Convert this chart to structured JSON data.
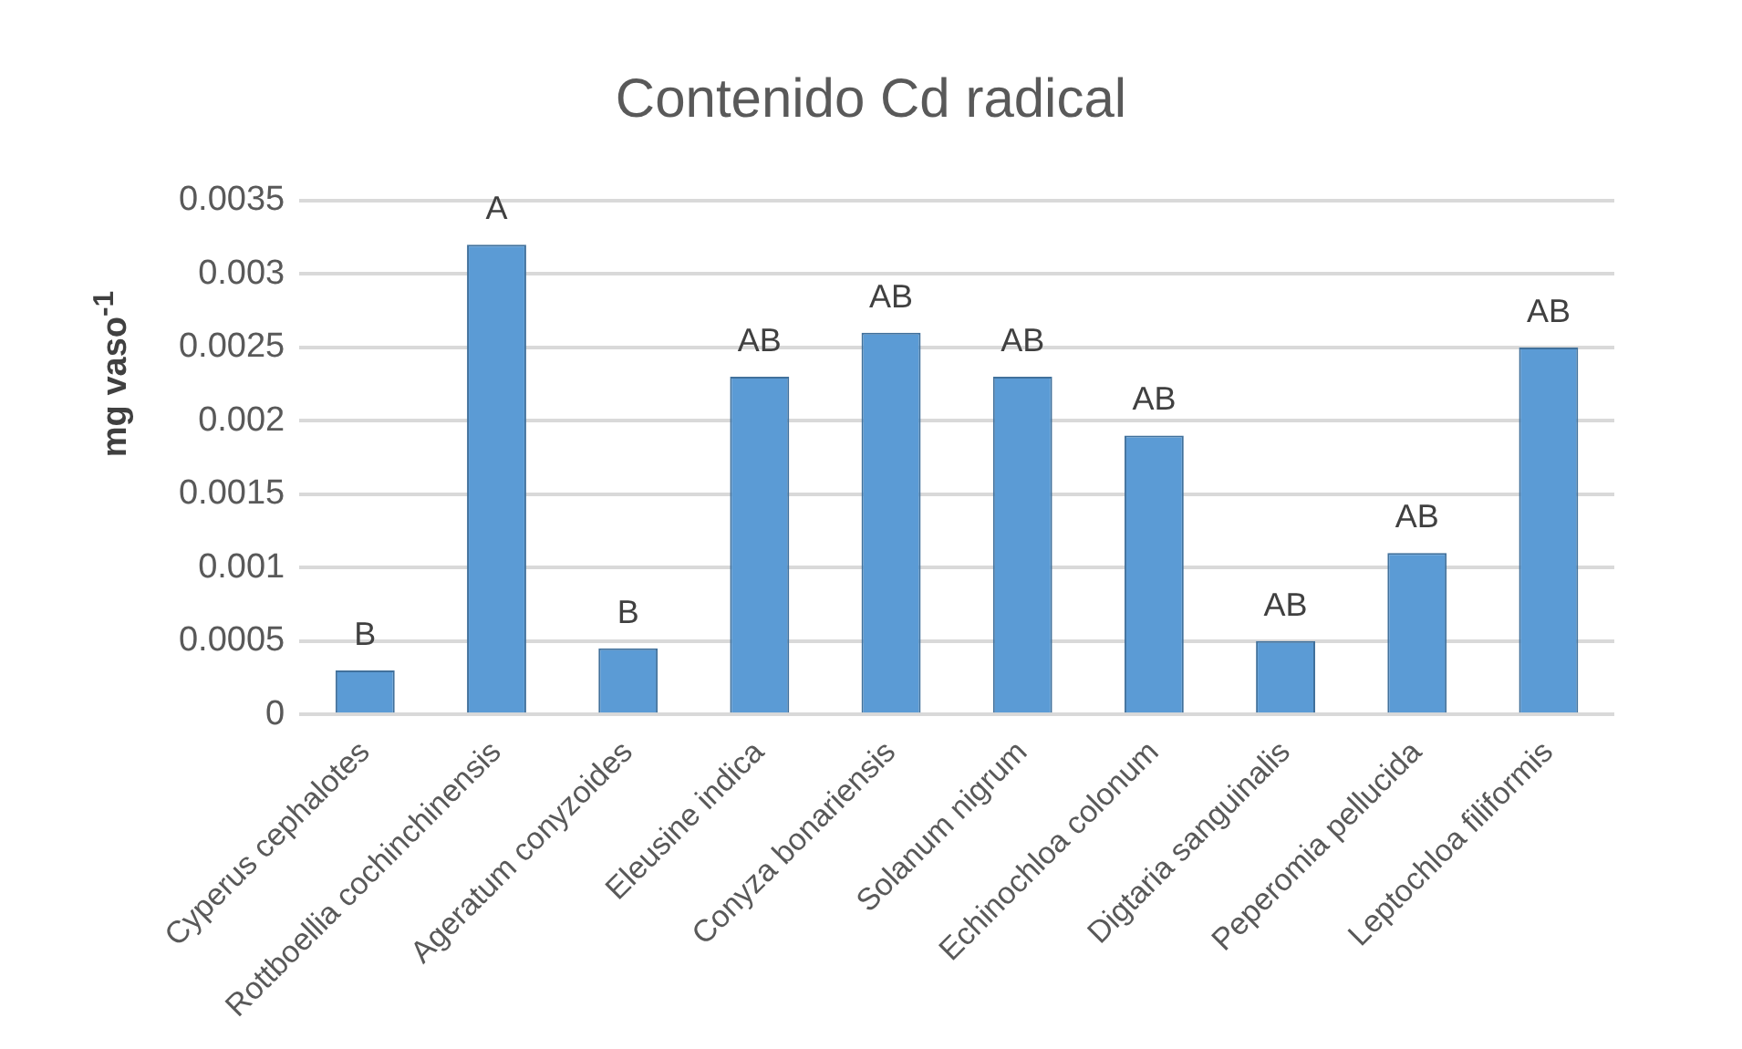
{
  "chart_data": {
    "type": "bar",
    "title": "Contenido Cd radical",
    "ylabel": "mg vaso$^{-1}$",
    "categories": [
      "Cyperus cephalotes",
      "Rottboellia cochinchinensis",
      "Ageratum conyzoides",
      "Eleusine indica",
      "Conyza bonariensis",
      "Solanum nigrum",
      "Echinochloa colonum",
      "Digtaria sanguinalis",
      "Peperomia pellucida",
      "Leptochloa filiformis"
    ],
    "values": [
      0.0003,
      0.0032,
      0.00045,
      0.0023,
      0.0026,
      0.0023,
      0.0019,
      0.0005,
      0.0011,
      0.0025
    ],
    "color": "#5b9bd5",
    "ylim": [
      0,
      0.0035
    ],
    "yticks": [
      0,
      0.0005,
      0.001,
      0.0015,
      0.002,
      0.0025,
      0.003,
      0.0035
    ],
    "grid": "y",
    "legend": false,
    "annotations": [
      {
        "text": "B",
        "x": "Cyperus cephalotes",
        "y": 0.0003
      },
      {
        "text": "A",
        "x": "Rottboellia cochinchinensis",
        "y": 0.0032
      },
      {
        "text": "B",
        "x": "Ageratum conyzoides",
        "y": 0.00045
      },
      {
        "text": "AB",
        "x": "Eleusine indica",
        "y": 0.0023
      },
      {
        "text": "AB",
        "x": "Conyza bonariensis",
        "y": 0.0026
      },
      {
        "text": "AB",
        "x": "Solanum nigrum",
        "y": 0.0023
      },
      {
        "text": "AB",
        "x": "Echinochloa colonum",
        "y": 0.0019
      },
      {
        "text": "AB",
        "x": "Digtaria sanguinalis",
        "y": 0.0005
      },
      {
        "text": "AB",
        "x": "Peperomia pellucida",
        "y": 0.0011
      },
      {
        "text": "AB",
        "x": "Leptochloa filiformis",
        "y": 0.0025
      }
    ]
  }
}
